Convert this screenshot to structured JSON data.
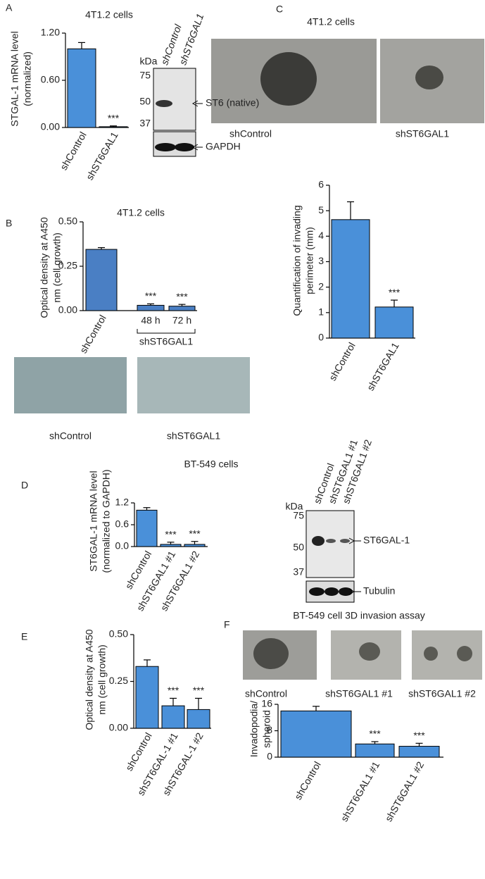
{
  "panel_letters": [
    "A",
    "B",
    "C",
    "D",
    "E",
    "F"
  ],
  "chart_data": [
    {
      "type": "bar",
      "title": "4T1.2 cells",
      "ylabel": [
        "STGAL-1 mRNA level",
        "(normalized)"
      ],
      "categories": [
        "shControl",
        "shST6GAL1"
      ],
      "values": [
        1.0,
        0.01
      ],
      "errors": [
        0.08,
        0.01
      ],
      "stars": [
        null,
        "***"
      ],
      "color": "#4a90d9",
      "ylim": [
        0,
        1.2
      ],
      "yticks": [
        {
          "value": 0,
          "label": "0.00"
        },
        {
          "value": 0.6,
          "label": "0.60"
        },
        {
          "value": 1.2,
          "label": "1.20"
        }
      ]
    },
    {
      "type": "bar",
      "title": "4T1.2 cells",
      "ylabel": [
        "Optical density at A450",
        "nm (cell growth)"
      ],
      "categories": [
        "shControl",
        "48 h",
        "72 h"
      ],
      "group_label": "shST6GAL1",
      "values": [
        0.345,
        0.03,
        0.025
      ],
      "errors": [
        0.01,
        0.008,
        0.01
      ],
      "stars": [
        null,
        "***",
        "***"
      ],
      "color": "#4a7fc4",
      "ylim": [
        0,
        0.5
      ],
      "yticks": [
        {
          "value": 0,
          "label": "0.00"
        },
        {
          "value": 0.25,
          "label": "0.25"
        },
        {
          "value": 0.5,
          "label": "0.50"
        }
      ]
    },
    {
      "type": "bar",
      "ylabel": [
        "Quantification of invading",
        "perimeter (mm)"
      ],
      "categories": [
        "shControl",
        "shST6GAL1"
      ],
      "values": [
        4.65,
        1.22
      ],
      "errors": [
        0.7,
        0.27
      ],
      "stars": [
        null,
        "***"
      ],
      "color": "#4a90d9",
      "ylim": [
        0,
        6
      ],
      "yticks": [
        0,
        1,
        2,
        3,
        4,
        5,
        6
      ]
    },
    {
      "type": "bar",
      "title": "BT-549 cells",
      "ylabel": [
        "ST6GAL-1 mRNA level",
        "(normalized to GAPDH)"
      ],
      "categories": [
        "shControl",
        "shST6GAL1 #1",
        "shST6GAL1 #2"
      ],
      "values": [
        1.0,
        0.06,
        0.06
      ],
      "errors": [
        0.07,
        0.06,
        0.08
      ],
      "stars": [
        null,
        "***",
        "***"
      ],
      "color": "#4a90d9",
      "ylim": [
        0,
        1.2
      ],
      "yticks": [
        {
          "value": 0,
          "label": "0.0"
        },
        0.6,
        1.2
      ]
    },
    {
      "type": "bar",
      "ylabel": [
        "Optical density at A450",
        "nm (cell growth)"
      ],
      "categories": [
        "shControl",
        "shST6GAL-1 #1",
        "shST6GAL-1 #2"
      ],
      "values": [
        0.33,
        0.12,
        0.1
      ],
      "errors": [
        0.035,
        0.04,
        0.06
      ],
      "stars": [
        null,
        "***",
        "***"
      ],
      "color": "#4a90d9",
      "ylim": [
        0,
        0.5
      ],
      "yticks": [
        {
          "value": 0,
          "label": "0.00"
        },
        {
          "value": 0.25,
          "label": "0.25"
        },
        {
          "value": 0.5,
          "label": "0.50"
        }
      ]
    },
    {
      "type": "bar",
      "ylabel": [
        "Invadopodia/",
        "spheroid"
      ],
      "categories": [
        "shControl",
        "shST6GAL1 #1",
        "shST6GAL1 #2"
      ],
      "values": [
        14,
        4,
        3.3
      ],
      "errors": [
        1.4,
        0.7,
        0.9
      ],
      "stars": [
        null,
        "***",
        "***"
      ],
      "color": "#4a90d9",
      "ylim": [
        0,
        16
      ],
      "yticks": [
        0,
        8,
        16
      ]
    }
  ],
  "blots": [
    {
      "kda": "kDa",
      "lanes": [
        "shControl",
        "shST6GAL1"
      ],
      "markers": [
        75,
        50,
        37
      ],
      "bands": [
        "ST6 (native)",
        "GAPDH"
      ]
    },
    {
      "kda": "kDa",
      "lanes": [
        "shControl",
        "shST6GAL1 #1",
        "shST6GAL1 #2"
      ],
      "markers": [
        75,
        50,
        37
      ],
      "bands": [
        "ST6GAL-1",
        "Tubulin"
      ]
    }
  ],
  "images": [
    {
      "title": "4T1.2 cells",
      "captions": [
        "shControl",
        "shST6GAL1"
      ]
    },
    {
      "captions": [
        "shControl",
        "shST6GAL1"
      ]
    },
    {
      "title": "BT-549 cell 3D invasion assay",
      "captions": [
        "shControl",
        "shST6GAL1 #1",
        "shST6GAL1 #2"
      ]
    }
  ]
}
